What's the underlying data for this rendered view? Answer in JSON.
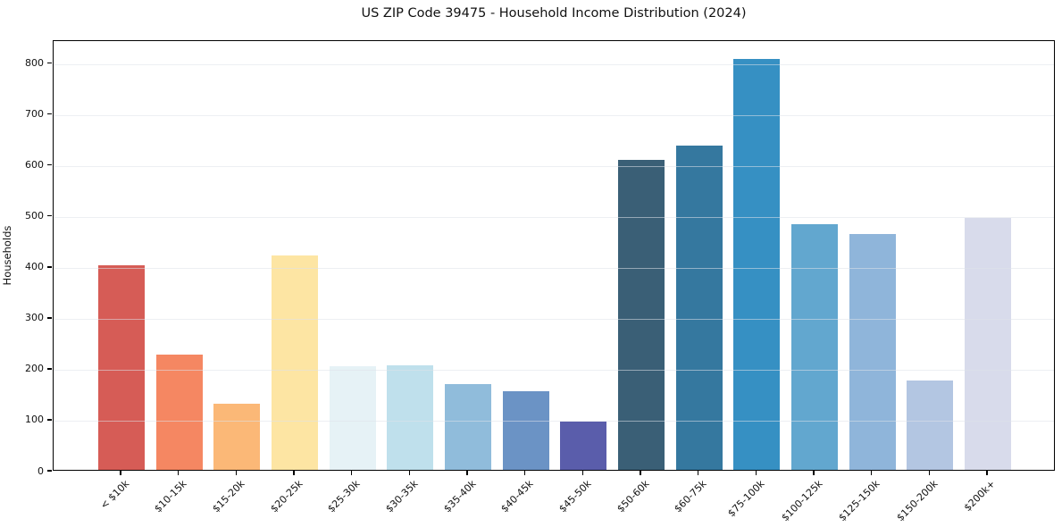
{
  "chart_data": {
    "type": "bar",
    "title": "US ZIP Code 39475 - Household Income Distribution (2024)",
    "xlabel": "",
    "ylabel": "Households",
    "categories": [
      "< $10k",
      "$10-15k",
      "$15-20k",
      "$20-25k",
      "$25-30k",
      "$30-35k",
      "$35-40k",
      "$40-45k",
      "$45-50k",
      "$50-60k",
      "$60-75k",
      "$75-100k",
      "$100-125k",
      "$125-150k",
      "$150-200k",
      "$200k+"
    ],
    "values": [
      401,
      227,
      129,
      420,
      203,
      205,
      168,
      154,
      95,
      608,
      637,
      806,
      483,
      462,
      175,
      494
    ],
    "bar_colors": [
      "#d65c56",
      "#f58762",
      "#fbb877",
      "#fde5a3",
      "#e6f2f6",
      "#bfe0ec",
      "#90bcdb",
      "#6b93c5",
      "#5a5dab",
      "#3a5f76",
      "#35789f",
      "#3690c3",
      "#62a7cf",
      "#8fb5da",
      "#b3c6e2",
      "#d8dbeb"
    ],
    "yticks": [
      0,
      100,
      200,
      300,
      400,
      500,
      600,
      700,
      800
    ],
    "ylim": [
      0,
      845
    ],
    "grid": "horizontal",
    "legend": "none",
    "x_tick_rotation_deg": 45
  }
}
